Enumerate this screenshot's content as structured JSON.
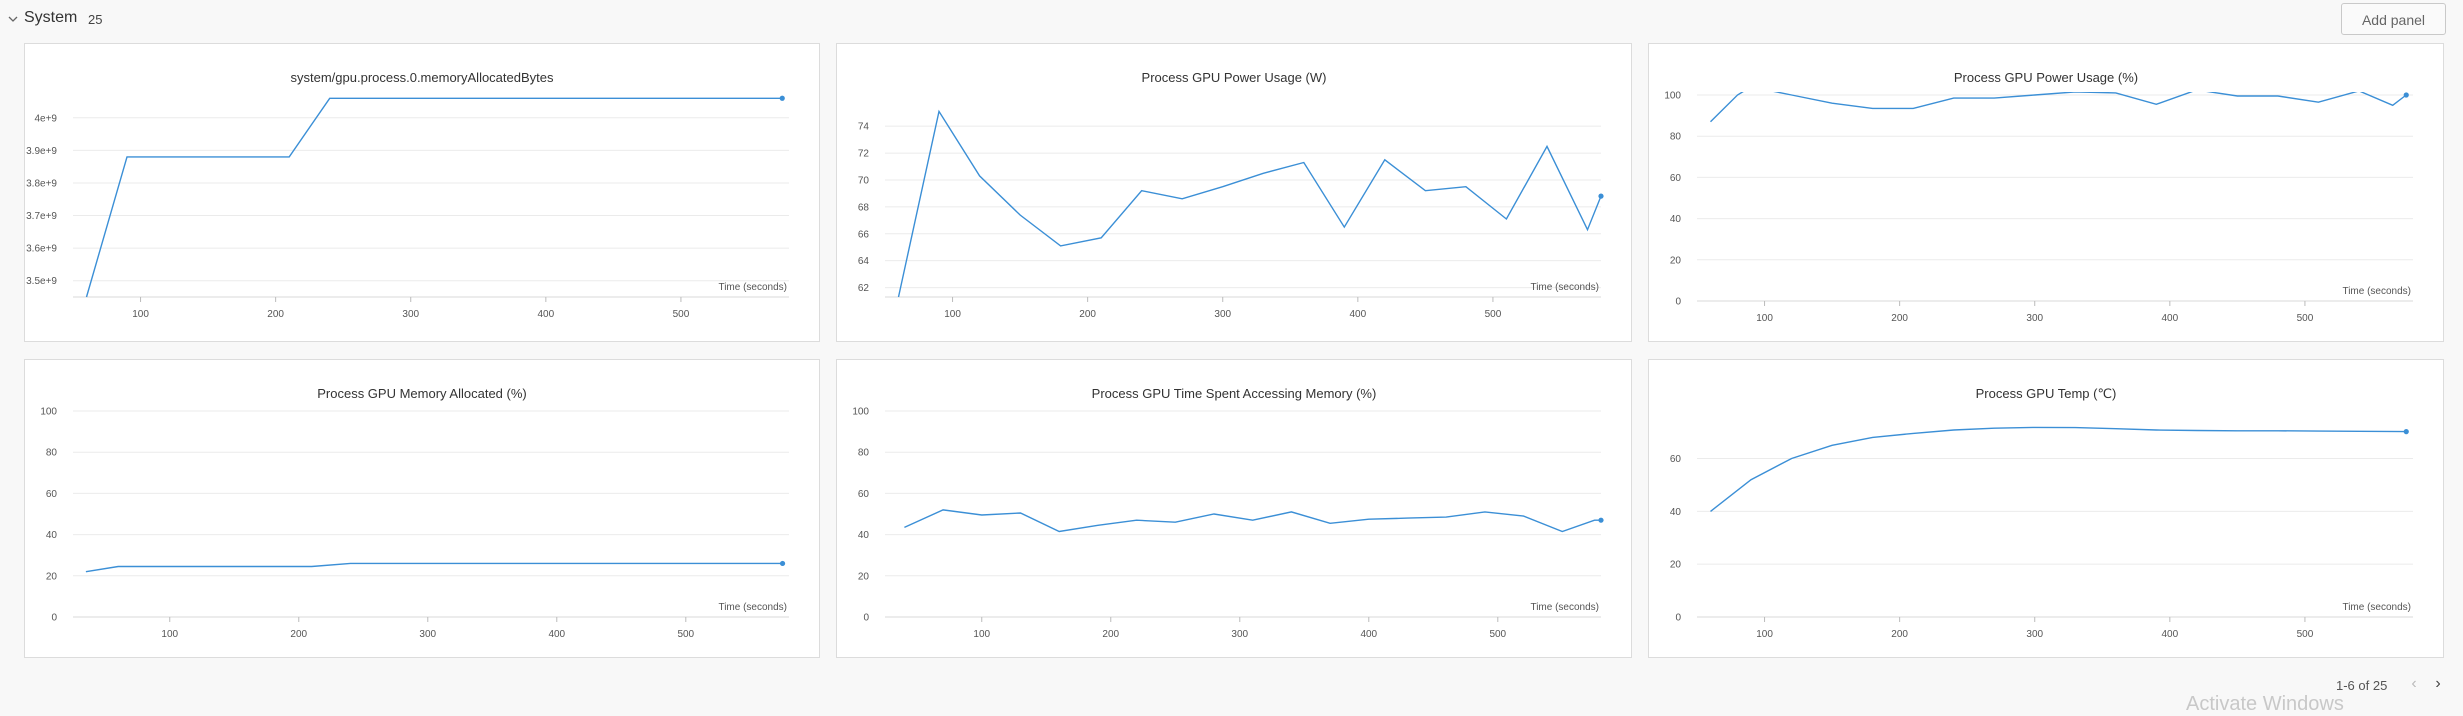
{
  "section": {
    "title": "System",
    "count": "25",
    "add_panel_label": "Add panel"
  },
  "colors": {
    "line": "#3b8fd6",
    "grid": "#ebebeb",
    "tick_text": "#555"
  },
  "icons": {
    "collapse": "chevron-down-icon",
    "prev": "chevron-left-icon",
    "next": "chevron-right-icon"
  },
  "pagination": {
    "label": "1-6 of 25"
  },
  "watermark": "Activate Windows",
  "chart_data": [
    {
      "type": "line",
      "title": "system/gpu.process.0.memoryAllocatedBytes",
      "xlabel": "Time (seconds)",
      "ylabel": "",
      "x_ticks": [
        100,
        200,
        300,
        400,
        500
      ],
      "y_ticks": [
        3500000000,
        3600000000,
        3700000000,
        3800000000,
        3900000000,
        4000000000
      ],
      "y_tick_labels": [
        "3.5e+9",
        "3.6e+9",
        "3.7e+9",
        "3.8e+9",
        "3.9e+9",
        "4e+9"
      ],
      "xlim": [
        50,
        580
      ],
      "ylim": [
        3450000000,
        4070000000
      ],
      "series": [
        {
          "x": [
            60,
            90,
            120,
            150,
            180,
            210,
            240,
            270,
            300,
            330,
            360,
            390,
            420,
            450,
            480,
            510,
            540,
            575
          ],
          "y": [
            3450000000,
            3880000000,
            3880000000,
            3880000000,
            3880000000,
            3880000000,
            4060000000,
            4060000000,
            4060000000,
            4060000000,
            4060000000,
            4060000000,
            4060000000,
            4060000000,
            4060000000,
            4060000000,
            4060000000,
            4060000000
          ]
        }
      ]
    },
    {
      "type": "line",
      "title": "Process GPU Power Usage (W)",
      "xlabel": "Time (seconds)",
      "ylabel": "",
      "x_ticks": [
        100,
        200,
        300,
        400,
        500
      ],
      "y_ticks": [
        62,
        64,
        66,
        68,
        70,
        72,
        74
      ],
      "y_tick_labels": [
        "62",
        "64",
        "66",
        "68",
        "70",
        "72",
        "74"
      ],
      "xlim": [
        50,
        580
      ],
      "ylim": [
        61.3,
        75.5
      ],
      "series": [
        {
          "x": [
            60,
            90,
            120,
            150,
            180,
            210,
            240,
            270,
            300,
            330,
            360,
            390,
            420,
            450,
            480,
            510,
            540,
            570,
            580
          ],
          "y": [
            61.3,
            75.1,
            70.3,
            67.4,
            65.1,
            65.7,
            69.2,
            68.6,
            69.5,
            70.5,
            71.3,
            66.5,
            71.5,
            69.2,
            69.5,
            67.1,
            72.5,
            66.3,
            68.8
          ]
        }
      ]
    },
    {
      "type": "line",
      "title": "Process GPU Power Usage (%)",
      "xlabel": "Time (seconds)",
      "ylabel": "",
      "x_ticks": [
        100,
        200,
        300,
        400,
        500
      ],
      "y_ticks": [
        0,
        20,
        40,
        60,
        80,
        100
      ],
      "y_tick_labels": [
        "0",
        "20",
        "40",
        "60",
        "80",
        "100"
      ],
      "xlim": [
        50,
        580
      ],
      "ylim": [
        0,
        100
      ],
      "series": [
        {
          "x": [
            60,
            80,
            90,
            120,
            150,
            180,
            210,
            240,
            270,
            300,
            330,
            360,
            390,
            420,
            450,
            480,
            510,
            540,
            565,
            575
          ],
          "y": [
            87,
            100,
            104,
            100,
            96,
            93.5,
            93.5,
            98.5,
            98.5,
            100,
            101.5,
            101,
            95.5,
            102.5,
            99.5,
            99.5,
            96.5,
            102,
            95,
            100
          ]
        }
      ]
    },
    {
      "type": "line",
      "title": "Process GPU Memory Allocated (%)",
      "xlabel": "Time (seconds)",
      "ylabel": "",
      "x_ticks": [
        100,
        200,
        300,
        400,
        500
      ],
      "y_ticks": [
        0,
        20,
        40,
        60,
        80,
        100
      ],
      "y_tick_labels": [
        "0",
        "20",
        "40",
        "60",
        "80",
        "100"
      ],
      "xlim": [
        25,
        580
      ],
      "ylim": [
        0,
        100
      ],
      "series": [
        {
          "x": [
            35,
            60,
            90,
            120,
            150,
            180,
            210,
            240,
            270,
            300,
            330,
            360,
            390,
            420,
            450,
            480,
            510,
            540,
            575
          ],
          "y": [
            22,
            24.5,
            24.5,
            24.5,
            24.5,
            24.5,
            24.5,
            26,
            26,
            26,
            26,
            26,
            26,
            26,
            26,
            26,
            26,
            26,
            26
          ]
        }
      ]
    },
    {
      "type": "line",
      "title": "Process GPU Time Spent Accessing Memory (%)",
      "xlabel": "Time (seconds)",
      "ylabel": "",
      "x_ticks": [
        100,
        200,
        300,
        400,
        500
      ],
      "y_ticks": [
        0,
        20,
        40,
        60,
        80,
        100
      ],
      "y_tick_labels": [
        "0",
        "20",
        "40",
        "60",
        "80",
        "100"
      ],
      "xlim": [
        25,
        580
      ],
      "ylim": [
        0,
        100
      ],
      "series": [
        {
          "x": [
            40,
            70,
            100,
            130,
            160,
            190,
            220,
            250,
            280,
            310,
            340,
            370,
            400,
            430,
            460,
            490,
            520,
            550,
            575,
            580
          ],
          "y": [
            43.5,
            52,
            49.5,
            50.5,
            41.5,
            44.5,
            47,
            46,
            50,
            47,
            51,
            45.5,
            47.5,
            48,
            48.5,
            51,
            49,
            41.5,
            47,
            47
          ]
        }
      ]
    },
    {
      "type": "line",
      "title": "Process GPU Temp (℃)",
      "xlabel": "Time (seconds)",
      "ylabel": "",
      "x_ticks": [
        100,
        200,
        300,
        400,
        500
      ],
      "y_ticks": [
        0,
        20,
        40,
        60
      ],
      "y_tick_labels": [
        "0",
        "20",
        "40",
        "60"
      ],
      "xlim": [
        50,
        580
      ],
      "ylim": [
        0,
        78
      ],
      "series": [
        {
          "x": [
            60,
            90,
            120,
            150,
            180,
            210,
            240,
            270,
            300,
            330,
            360,
            390,
            420,
            450,
            480,
            510,
            540,
            575
          ],
          "y": [
            40,
            52,
            60,
            65,
            68,
            69.5,
            70.8,
            71.5,
            71.8,
            71.7,
            71.3,
            70.8,
            70.6,
            70.5,
            70.5,
            70.4,
            70.3,
            70.2
          ]
        }
      ]
    }
  ]
}
